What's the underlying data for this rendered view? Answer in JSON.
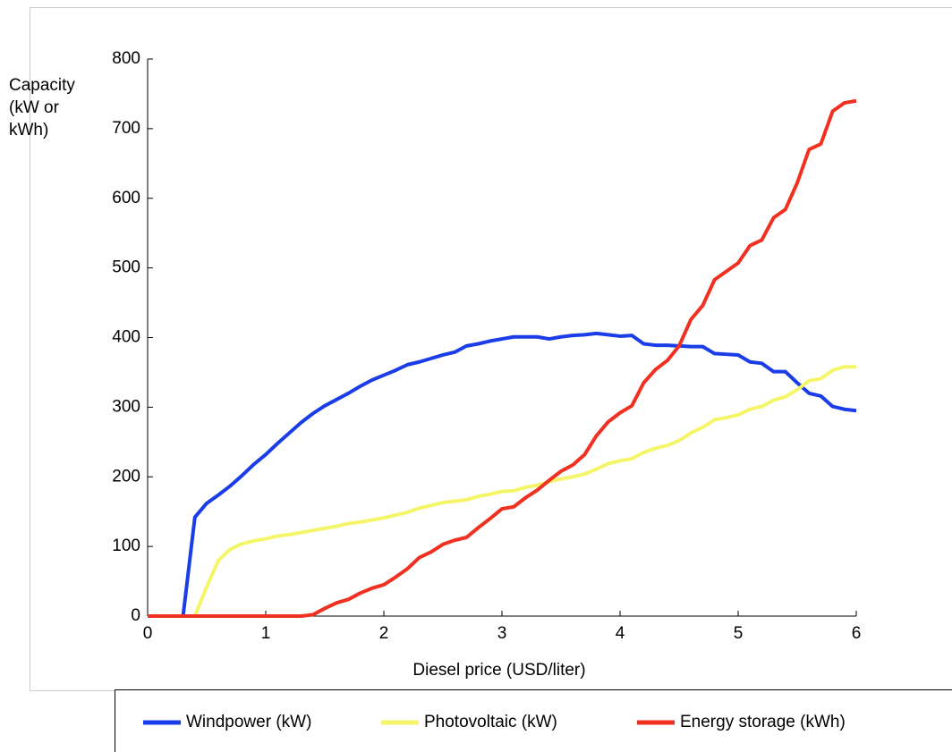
{
  "chart_data": {
    "type": "line",
    "ylabel": [
      "Capacity",
      "(kW or",
      "kWh)"
    ],
    "xlabel": "Diesel price (USD/liter)",
    "x": [
      0,
      0.1,
      0.2,
      0.3,
      0.4,
      0.5,
      0.6,
      0.7,
      0.8,
      0.9,
      1,
      1.1,
      1.2,
      1.3,
      1.4,
      1.5,
      1.6,
      1.7,
      1.8,
      1.9,
      2,
      2.1,
      2.2,
      2.3,
      2.4,
      2.5,
      2.6,
      2.7,
      2.8,
      2.9,
      3,
      3.1,
      3.2,
      3.3,
      3.4,
      3.5,
      3.6,
      3.7,
      3.8,
      3.9,
      4,
      4.1,
      4.2,
      4.3,
      4.4,
      4.5,
      4.6,
      4.7,
      4.8,
      4.9,
      5,
      5.1,
      5.2,
      5.3,
      5.4,
      5.5,
      5.6,
      5.7,
      5.8,
      5.9,
      6
    ],
    "series": [
      {
        "name": "Windpower (kW)",
        "color": "#1a3de8",
        "values": [
          0,
          0,
          0,
          0,
          142,
          162,
          174,
          187,
          202,
          218,
          232,
          248,
          263,
          278,
          291,
          302,
          311,
          320,
          330,
          339,
          346,
          353,
          361,
          365,
          370,
          375,
          379,
          388,
          391,
          395,
          398,
          401,
          401,
          401,
          398,
          401,
          403,
          404,
          406,
          404,
          402,
          403,
          391,
          389,
          389,
          388,
          387,
          387,
          377,
          376,
          375,
          365,
          363,
          351,
          351,
          335,
          320,
          316,
          301,
          297,
          295
        ]
      },
      {
        "name": "Photovoltaic (kW)",
        "color": "#f5f56a",
        "values": [
          0,
          0,
          0,
          0,
          0,
          42,
          80,
          96,
          104,
          108,
          111,
          115,
          117,
          120,
          123,
          126,
          129,
          133,
          135,
          138,
          141,
          145,
          149,
          155,
          159,
          163,
          165,
          167,
          172,
          175,
          179,
          180,
          185,
          188,
          193,
          197,
          200,
          204,
          211,
          219,
          223,
          226,
          235,
          241,
          245,
          252,
          263,
          271,
          282,
          285,
          289,
          297,
          301,
          310,
          315,
          325,
          338,
          341,
          353,
          358,
          358
        ]
      },
      {
        "name": "Energy storage (kWh)",
        "color": "#f03020",
        "values": [
          0,
          0,
          0,
          0,
          0,
          0,
          0,
          0,
          0,
          0,
          0,
          0,
          0,
          0,
          2,
          11,
          19,
          24,
          33,
          40,
          45,
          56,
          68,
          84,
          92,
          103,
          109,
          113,
          127,
          140,
          154,
          157,
          170,
          181,
          195,
          208,
          217,
          232,
          259,
          279,
          292,
          302,
          335,
          354,
          367,
          388,
          426,
          446,
          483,
          495,
          507,
          532,
          540,
          572,
          584,
          622,
          670,
          678,
          725,
          737,
          740
        ]
      }
    ],
    "xlim": [
      0,
      6
    ],
    "xticks": [
      0,
      1,
      2,
      3,
      4,
      5,
      6
    ],
    "ylim": [
      0,
      800
    ],
    "yticks": [
      0,
      100,
      200,
      300,
      400,
      500,
      600,
      700,
      800
    ],
    "legend": "bottom"
  }
}
